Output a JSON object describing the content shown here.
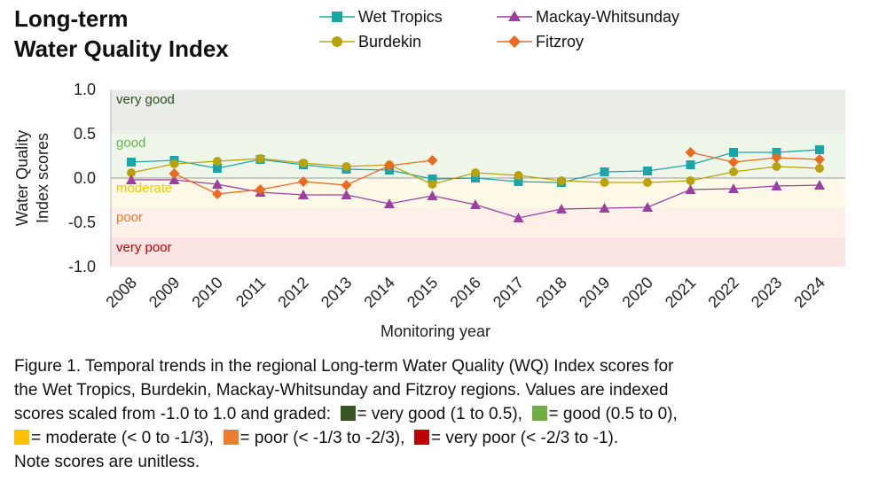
{
  "title": {
    "line1": "Long-term",
    "line2": "Water Quality Index"
  },
  "legend": [
    {
      "name": "Wet Tropics",
      "color": "#1aa6a6",
      "marker": "square"
    },
    {
      "name": "Mackay-Whitsunday",
      "color": "#9b3fa0",
      "marker": "triangle"
    },
    {
      "name": "Burdekin",
      "color": "#b9a30d",
      "marker": "circle"
    },
    {
      "name": "Fitzroy",
      "color": "#ea6a1f",
      "marker": "diamond"
    }
  ],
  "chart_data": {
    "type": "line",
    "xlabel": "Monitoring year",
    "ylabel_line1": "Water Quality",
    "ylabel_line2": "Index scores",
    "ylim": [
      -1.0,
      1.0
    ],
    "yticks": [
      "1.0",
      "0.5",
      "0.0",
      "-0.5",
      "-1.0"
    ],
    "x": [
      "2008",
      "2009",
      "2010",
      "2011",
      "2012",
      "2013",
      "2014",
      "2015",
      "2016",
      "2017",
      "2018",
      "2019",
      "2020",
      "2021",
      "2022",
      "2023",
      "2024"
    ],
    "bands": [
      {
        "label": "very good",
        "from": 0.5,
        "to": 1.0,
        "fill": "#e9ece7",
        "text": "#2e4d24"
      },
      {
        "label": "good",
        "from": 0.0,
        "to": 0.5,
        "fill": "#eef6ea",
        "text": "#6ab04c"
      },
      {
        "label": "moderate",
        "from": -0.333,
        "to": 0.0,
        "fill": "#fdf9e6",
        "text": "#f2c500"
      },
      {
        "label": "poor",
        "from": -0.667,
        "to": -0.333,
        "fill": "#fdf0e8",
        "text": "#ea7a33"
      },
      {
        "label": "very poor",
        "from": -1.0,
        "to": -0.667,
        "fill": "#f9e3e3",
        "text": "#c00000"
      }
    ],
    "series": [
      {
        "name": "Wet Tropics",
        "color": "#1aa6a6",
        "marker": "square",
        "values": [
          0.18,
          0.2,
          0.11,
          0.21,
          0.15,
          0.1,
          0.09,
          -0.01,
          0.0,
          -0.04,
          -0.05,
          0.07,
          0.08,
          0.15,
          0.29,
          0.29,
          0.32
        ]
      },
      {
        "name": "Burdekin",
        "color": "#b9a30d",
        "marker": "circle",
        "values": [
          0.06,
          0.16,
          0.19,
          0.22,
          0.17,
          0.13,
          0.15,
          -0.07,
          0.06,
          0.03,
          -0.03,
          -0.05,
          -0.05,
          -0.03,
          0.07,
          0.13,
          0.11
        ]
      },
      {
        "name": "Mackay-Whitsunday",
        "color": "#9b3fa0",
        "marker": "triangle",
        "values": [
          -0.02,
          -0.02,
          -0.07,
          -0.16,
          -0.19,
          -0.19,
          -0.29,
          -0.2,
          -0.3,
          -0.45,
          -0.35,
          -0.34,
          -0.33,
          -0.13,
          -0.12,
          -0.09,
          -0.08
        ]
      },
      {
        "name": "Fitzroy",
        "color": "#ea6a1f",
        "marker": "diamond",
        "values": [
          null,
          0.05,
          -0.18,
          -0.13,
          -0.04,
          -0.08,
          0.14,
          0.2,
          null,
          null,
          null,
          null,
          null,
          0.29,
          0.18,
          0.23,
          0.21
        ]
      }
    ]
  },
  "caption": {
    "line1": "Figure 1. Temporal trends in the regional Long-term Water Quality (WQ) Index scores for",
    "line2": "the Wet Tropics, Burdekin, Mackay-Whitsunday and Fitzroy regions. Values are indexed",
    "line3_pre": "scores scaled from -1.0 to 1.0 and graded:",
    "grade_very_good": "= very good (1 to 0.5),",
    "grade_good": "= good (0.5 to 0),",
    "grade_moderate": "= moderate (< 0 to -1/3),",
    "grade_poor": "= poor (< -1/3 to -2/3),",
    "grade_very_poor": "= very poor (< -2/3 to -1).",
    "line5": "Note scores are unitless.",
    "swatch_colors": {
      "very_good": "#375623",
      "good": "#70ad47",
      "moderate": "#ffc000",
      "poor": "#ed7d31",
      "very_poor": "#c00000"
    }
  }
}
